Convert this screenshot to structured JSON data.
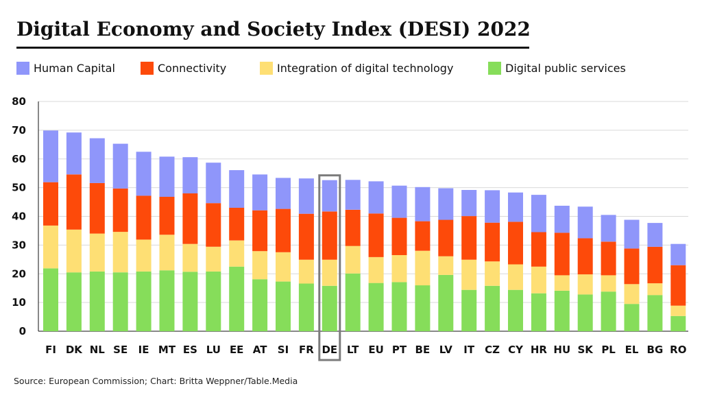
{
  "source_text": "Source: European Commission; Chart: Britta Weppner/Table.Media",
  "colors": {
    "human_capital": "#8f96fa",
    "connectivity": "#fd4a0a",
    "integration": "#fedf74",
    "public_services": "#86dd5a",
    "highlight_box": "#7b7b7b",
    "grid": "#d9d9d9"
  },
  "chart_data": {
    "type": "bar",
    "stacked": true,
    "title": "Digital Economy and Society Index (DESI) 2022",
    "xlabel": "",
    "ylabel": "",
    "ylim": [
      0,
      80
    ],
    "yticks": [
      0,
      10,
      20,
      30,
      40,
      50,
      60,
      70,
      80
    ],
    "grid": true,
    "legend_position": "top-left",
    "highlight_category": "DE",
    "categories": [
      "FI",
      "DK",
      "NL",
      "SE",
      "IE",
      "MT",
      "ES",
      "LU",
      "EE",
      "AT",
      "SI",
      "FR",
      "DE",
      "LT",
      "EU",
      "PT",
      "BE",
      "LV",
      "IT",
      "CZ",
      "CY",
      "HR",
      "HU",
      "SK",
      "PL",
      "EL",
      "BG",
      "RO"
    ],
    "series": [
      {
        "name": "Digital public services",
        "color_key": "public_services",
        "values": [
          21.9,
          20.5,
          20.8,
          20.5,
          20.8,
          21.2,
          20.7,
          20.8,
          22.5,
          18.1,
          17.3,
          16.6,
          15.8,
          20.1,
          16.8,
          17.1,
          16.0,
          19.6,
          14.4,
          15.8,
          14.4,
          13.2,
          14.1,
          12.8,
          13.8,
          9.5,
          12.6,
          5.3
        ]
      },
      {
        "name": "Integration of digital technology",
        "color_key": "integration",
        "values": [
          14.9,
          14.9,
          13.2,
          14.1,
          11.1,
          12.4,
          9.7,
          8.6,
          9.1,
          9.8,
          10.2,
          8.3,
          9.1,
          9.6,
          9.0,
          9.4,
          12.0,
          6.5,
          10.5,
          8.5,
          8.9,
          9.3,
          5.4,
          7.0,
          5.7,
          6.9,
          4.1,
          3.6
        ]
      },
      {
        "name": "Connectivity",
        "color_key": "connectivity",
        "values": [
          15.1,
          19.2,
          17.6,
          15.1,
          15.3,
          13.2,
          17.6,
          15.2,
          11.4,
          14.2,
          15.1,
          16.0,
          16.8,
          12.6,
          15.2,
          13.0,
          10.3,
          12.7,
          15.2,
          13.5,
          14.8,
          12.0,
          14.8,
          12.6,
          11.7,
          12.4,
          12.7,
          14.1
        ]
      },
      {
        "name": "Human Capital",
        "color_key": "human_capital",
        "values": [
          18.0,
          14.6,
          15.6,
          15.6,
          15.3,
          14.0,
          12.6,
          14.1,
          13.1,
          12.5,
          10.8,
          12.3,
          10.9,
          10.4,
          11.2,
          11.2,
          11.9,
          11.0,
          9.1,
          11.3,
          10.2,
          13.0,
          9.4,
          11.0,
          9.3,
          10.0,
          8.3,
          7.4
        ]
      }
    ]
  }
}
